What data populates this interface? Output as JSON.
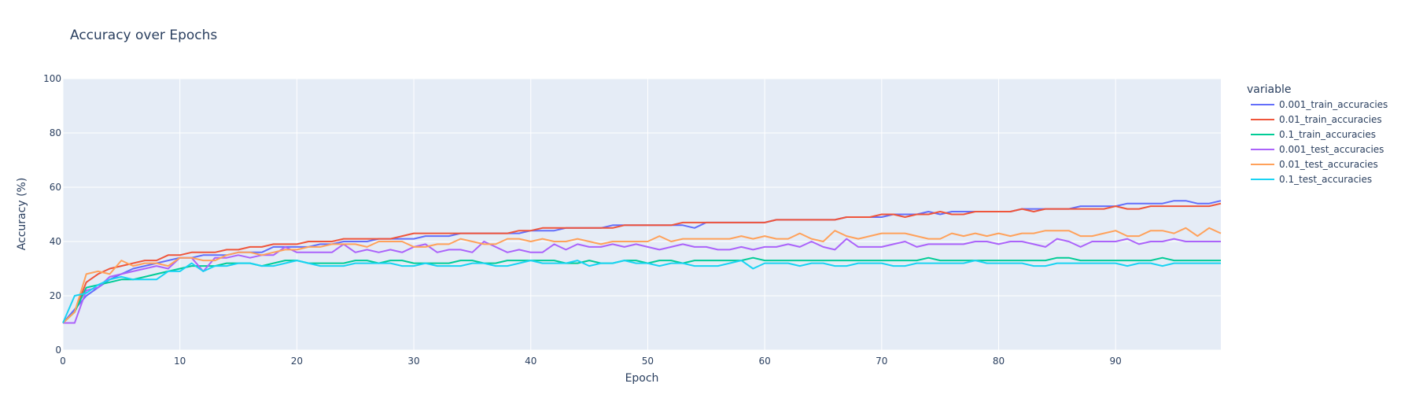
{
  "chart_data": {
    "type": "line",
    "title": "Accuracy over Epochs",
    "xlabel": "Epoch",
    "ylabel": "Accuracy (%)",
    "xlim": [
      0,
      99
    ],
    "ylim": [
      0,
      100
    ],
    "x_ticks": [
      0,
      10,
      20,
      30,
      40,
      50,
      60,
      70,
      80,
      90
    ],
    "y_ticks": [
      0,
      20,
      40,
      60,
      80,
      100
    ],
    "grid": true,
    "legend_title": "variable",
    "legend_position": "right",
    "background": "#e5ecf6",
    "series": [
      {
        "name": "0.001_train_accuracies",
        "color": "#636efa",
        "values": [
          10,
          15,
          20,
          23,
          26,
          28,
          30,
          31,
          32,
          33,
          34,
          34,
          35,
          35,
          35,
          36,
          36,
          36,
          38,
          38,
          38,
          38,
          39,
          39,
          40,
          40,
          40,
          41,
          41,
          41,
          41,
          42,
          42,
          42,
          43,
          43,
          43,
          43,
          43,
          43,
          44,
          44,
          44,
          45,
          45,
          45,
          45,
          46,
          46,
          46,
          46,
          46,
          46,
          46,
          45,
          47,
          47,
          47,
          47,
          47,
          47,
          48,
          48,
          48,
          48,
          48,
          48,
          49,
          49,
          49,
          49,
          50,
          50,
          50,
          51,
          50,
          51,
          51,
          51,
          51,
          51,
          51,
          52,
          52,
          52,
          52,
          52,
          53,
          53,
          53,
          53,
          54,
          54,
          54,
          54,
          55,
          55,
          54,
          54,
          55
        ]
      },
      {
        "name": "0.01_train_accuracies",
        "color": "#ef553b",
        "values": [
          10,
          14,
          25,
          28,
          30,
          31,
          32,
          33,
          33,
          35,
          35,
          36,
          36,
          36,
          37,
          37,
          38,
          38,
          39,
          39,
          39,
          40,
          40,
          40,
          41,
          41,
          41,
          41,
          41,
          42,
          43,
          43,
          43,
          43,
          43,
          43,
          43,
          43,
          43,
          44,
          44,
          45,
          45,
          45,
          45,
          45,
          45,
          45,
          46,
          46,
          46,
          46,
          46,
          47,
          47,
          47,
          47,
          47,
          47,
          47,
          47,
          48,
          48,
          48,
          48,
          48,
          48,
          49,
          49,
          49,
          50,
          50,
          49,
          50,
          50,
          51,
          50,
          50,
          51,
          51,
          51,
          51,
          52,
          51,
          52,
          52,
          52,
          52,
          52,
          52,
          53,
          52,
          52,
          53,
          53,
          53,
          53,
          53,
          53,
          54
        ]
      },
      {
        "name": "0.1_train_accuracies",
        "color": "#00cc96",
        "values": [
          10,
          14,
          23,
          24,
          25,
          26,
          26,
          27,
          28,
          29,
          30,
          31,
          31,
          31,
          32,
          32,
          32,
          31,
          32,
          33,
          33,
          32,
          32,
          32,
          32,
          33,
          33,
          32,
          33,
          33,
          32,
          32,
          32,
          32,
          33,
          33,
          32,
          32,
          33,
          33,
          33,
          33,
          33,
          32,
          32,
          33,
          32,
          32,
          33,
          33,
          32,
          33,
          33,
          32,
          33,
          33,
          33,
          33,
          33,
          34,
          33,
          33,
          33,
          33,
          33,
          33,
          33,
          33,
          33,
          33,
          33,
          33,
          33,
          33,
          34,
          33,
          33,
          33,
          33,
          33,
          33,
          33,
          33,
          33,
          33,
          34,
          34,
          33,
          33,
          33,
          33,
          33,
          33,
          33,
          34,
          33,
          33,
          33,
          33,
          33
        ]
      },
      {
        "name": "0.001_test_accuracies",
        "color": "#ab63fa",
        "values": [
          10,
          10,
          22,
          23,
          27,
          28,
          29,
          30,
          31,
          30,
          34,
          34,
          29,
          34,
          34,
          35,
          34,
          35,
          35,
          38,
          36,
          36,
          36,
          36,
          39,
          36,
          37,
          36,
          37,
          36,
          38,
          39,
          36,
          37,
          37,
          36,
          40,
          38,
          36,
          37,
          36,
          36,
          39,
          37,
          39,
          38,
          38,
          39,
          38,
          39,
          38,
          37,
          38,
          39,
          38,
          38,
          37,
          37,
          38,
          37,
          38,
          38,
          39,
          38,
          40,
          38,
          37,
          41,
          38,
          38,
          38,
          39,
          40,
          38,
          39,
          39,
          39,
          39,
          40,
          40,
          39,
          40,
          40,
          39,
          38,
          41,
          40,
          38,
          40,
          40,
          40,
          41,
          39,
          40,
          40,
          41,
          40,
          40,
          40,
          40
        ]
      },
      {
        "name": "0.01_test_accuracies",
        "color": "#ffa15a",
        "values": [
          10,
          14,
          28,
          29,
          28,
          33,
          31,
          32,
          32,
          31,
          34,
          34,
          33,
          33,
          35,
          36,
          36,
          35,
          36,
          37,
          37,
          38,
          38,
          39,
          39,
          39,
          38,
          40,
          40,
          40,
          38,
          38,
          39,
          39,
          41,
          40,
          39,
          39,
          41,
          41,
          40,
          41,
          40,
          40,
          41,
          40,
          39,
          40,
          40,
          40,
          40,
          42,
          40,
          41,
          41,
          41,
          41,
          41,
          42,
          41,
          42,
          41,
          41,
          43,
          41,
          40,
          44,
          42,
          41,
          42,
          43,
          43,
          43,
          42,
          41,
          41,
          43,
          42,
          43,
          42,
          43,
          42,
          43,
          43,
          44,
          44,
          44,
          42,
          42,
          43,
          44,
          42,
          42,
          44,
          44,
          43,
          45,
          42,
          45,
          43
        ]
      },
      {
        "name": "0.1_test_accuracies",
        "color": "#19d3f3",
        "values": [
          10,
          20,
          21,
          24,
          26,
          27,
          26,
          26,
          26,
          29,
          29,
          32,
          29,
          31,
          31,
          32,
          32,
          31,
          31,
          32,
          33,
          32,
          31,
          31,
          31,
          32,
          32,
          32,
          32,
          31,
          31,
          32,
          31,
          31,
          31,
          32,
          32,
          31,
          31,
          32,
          33,
          32,
          32,
          32,
          33,
          31,
          32,
          32,
          33,
          32,
          32,
          31,
          32,
          32,
          31,
          31,
          31,
          32,
          33,
          30,
          32,
          32,
          32,
          31,
          32,
          32,
          31,
          31,
          32,
          32,
          32,
          31,
          31,
          32,
          32,
          32,
          32,
          32,
          33,
          32,
          32,
          32,
          32,
          31,
          31,
          32,
          32,
          32,
          32,
          32,
          32,
          31,
          32,
          32,
          31,
          32,
          32,
          32,
          32,
          32
        ]
      }
    ]
  }
}
